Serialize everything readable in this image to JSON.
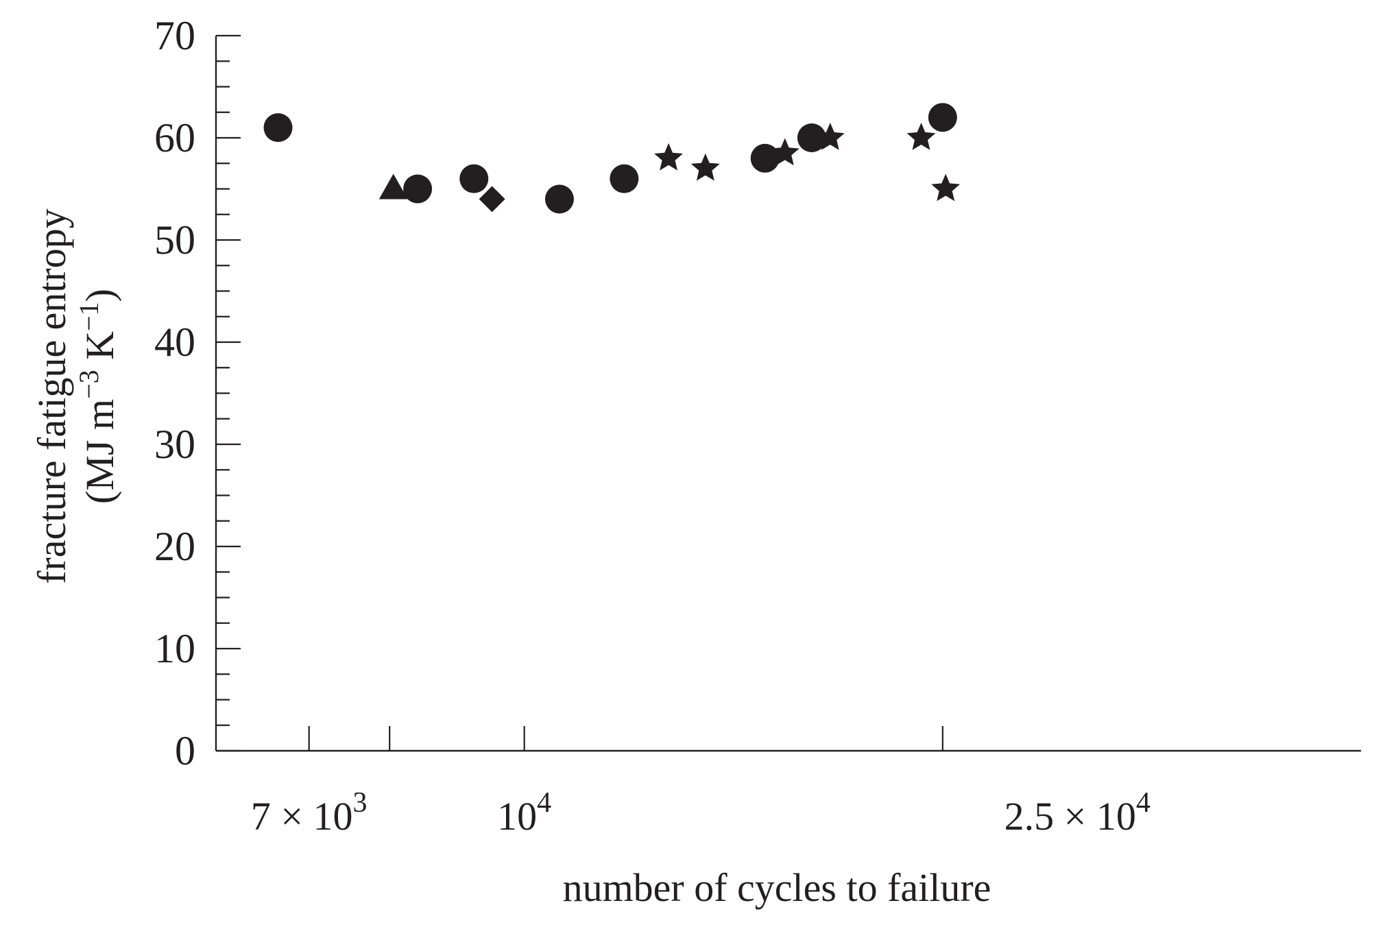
{
  "chart_data": {
    "type": "scatter",
    "title": "",
    "xlabel": "number of cycles to failure",
    "ylabel_line1": "fracture fatigue entropy",
    "ylabel_line2_prefix": "(MJ m",
    "ylabel_line2_exp1": "−3",
    "ylabel_line2_mid": " K",
    "ylabel_line2_exp2": "−1",
    "ylabel_line2_suffix": ")",
    "x_scale": "log",
    "xlim": [
      6000,
      40000
    ],
    "ylim": [
      0,
      70
    ],
    "y_ticks": [
      "0",
      "10",
      "20",
      "30",
      "40",
      "50",
      "60",
      "70"
    ],
    "y_minor_step": 2.5,
    "x_major_ticks": [
      7000,
      8000,
      10000,
      20000
    ],
    "x_tick_labels": [
      {
        "value": 7000,
        "mantissa": "7 × 10",
        "exp": "3"
      },
      {
        "value": 10000,
        "mantissa": "10",
        "exp": "4"
      },
      {
        "value": 25000,
        "mantissa": "2.5 × 10",
        "exp": "4"
      }
    ],
    "grid": false,
    "legend": "none",
    "marker_color": "#231f20",
    "points": [
      {
        "x": 6650,
        "y": 61,
        "marker": "circle"
      },
      {
        "x": 8050,
        "y": 55,
        "marker": "triangle"
      },
      {
        "x": 8380,
        "y": 55,
        "marker": "circle"
      },
      {
        "x": 9200,
        "y": 56,
        "marker": "circle"
      },
      {
        "x": 9480,
        "y": 54,
        "marker": "diamond"
      },
      {
        "x": 10600,
        "y": 54,
        "marker": "circle"
      },
      {
        "x": 11800,
        "y": 56,
        "marker": "circle"
      },
      {
        "x": 12700,
        "y": 58,
        "marker": "star"
      },
      {
        "x": 13500,
        "y": 57,
        "marker": "star"
      },
      {
        "x": 14900,
        "y": 58,
        "marker": "circle"
      },
      {
        "x": 15400,
        "y": 58.5,
        "marker": "star"
      },
      {
        "x": 16100,
        "y": 60,
        "marker": "circle"
      },
      {
        "x": 16600,
        "y": 60,
        "marker": "star"
      },
      {
        "x": 19300,
        "y": 60,
        "marker": "star"
      },
      {
        "x": 20000,
        "y": 62,
        "marker": "circle"
      },
      {
        "x": 20100,
        "y": 55,
        "marker": "star"
      }
    ]
  }
}
